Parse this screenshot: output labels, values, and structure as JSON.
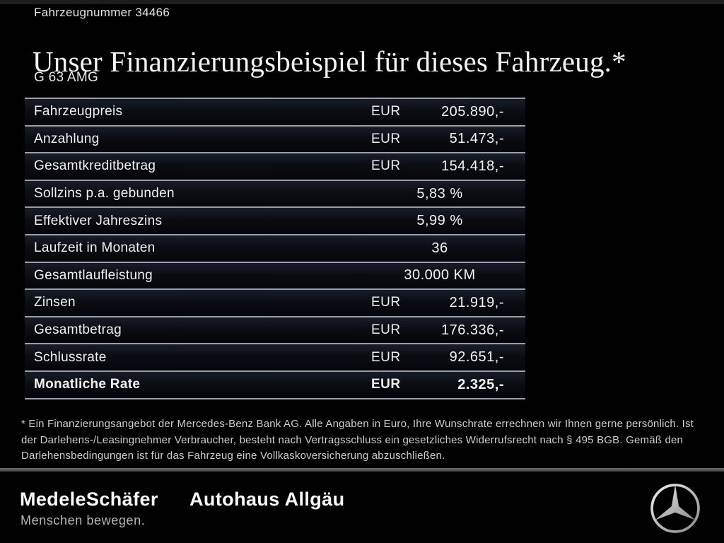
{
  "page": {
    "vehicle_number": "Fahrzeugnummer 34466",
    "title": "Unser Finanzierungsbeispiel für dieses Fahrzeug.*",
    "model": "G 63 AMG"
  },
  "table": {
    "rows": [
      {
        "label": "Fahrzeugpreis",
        "currency": "EUR",
        "value": "205.890,-",
        "align": "right",
        "bold": false
      },
      {
        "label": "Anzahlung",
        "currency": "EUR",
        "value": "51.473,-",
        "align": "right",
        "bold": false
      },
      {
        "label": "Gesamtkreditbetrag",
        "currency": "EUR",
        "value": "154.418,-",
        "align": "right",
        "bold": false
      },
      {
        "label": "Sollzins p.a. gebunden",
        "currency": "",
        "value": "5,83 %",
        "align": "center",
        "bold": false
      },
      {
        "label": "Effektiver Jahreszins",
        "currency": "",
        "value": "5,99 %",
        "align": "center",
        "bold": false
      },
      {
        "label": "Laufzeit in Monaten",
        "currency": "",
        "value": "36",
        "align": "center",
        "bold": false
      },
      {
        "label": "Gesamtlaufleistung",
        "currency": "",
        "value": "30.000 KM",
        "align": "center",
        "bold": false
      },
      {
        "label": "Zinsen",
        "currency": "EUR",
        "value": "21.919,-",
        "align": "right",
        "bold": false
      },
      {
        "label": "Gesamtbetrag",
        "currency": "EUR",
        "value": "176.336,-",
        "align": "right",
        "bold": false
      },
      {
        "label": "Schlussrate",
        "currency": "EUR",
        "value": "92.651,-",
        "align": "right",
        "bold": false
      },
      {
        "label": "Monatliche Rate",
        "currency": "EUR",
        "value": "2.325,-",
        "align": "right",
        "bold": true
      }
    ]
  },
  "footnote": "* Ein Finanzierungsangebot der Mercedes-Benz Bank AG. Alle Angaben in Euro, Ihre Wunschrate errechnen wir Ihnen gerne persönlich. Ist der Darlehens-/Leasingnehmer Verbraucher, besteht nach Vertragsschluss ein gesetzliches Widerrufsrecht nach § 495 BGB. Gemäß den Darlehensbedingungen ist für das Fahrzeug eine Vollkaskoversicherung abzuschließen.",
  "footer": {
    "dealer_name": "MedeleSchäfer",
    "dealer_tagline": "Menschen bewegen.",
    "dealer_secondary": "Autohaus Allgäu",
    "brand_icon": "mercedes-star-icon"
  },
  "colors": {
    "background": "#010101",
    "row_separator": "#97a1ad",
    "row_gradient_top": "#191d27",
    "footer_divider": "#5c5c5c",
    "text_primary": "#f2f2f2",
    "text_footnote": "#cdcdcd",
    "logo_silver": "#d8d8d8"
  }
}
